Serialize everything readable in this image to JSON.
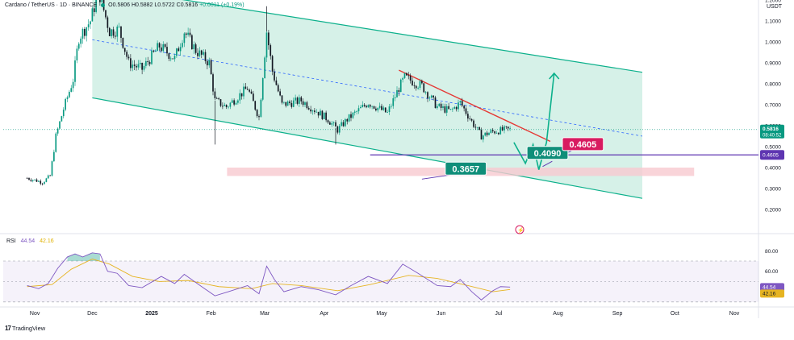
{
  "header": {
    "symbol": "Cardano / TetherUS · 1D · BINANCE",
    "open": "O0.5806",
    "high": "H0.5882",
    "low": "L0.5722",
    "close": "C0.5816",
    "change": "+0.0011 (+0.19%)"
  },
  "currency": "USDT",
  "brand": "TradingView",
  "colors": {
    "up": "#089981",
    "down": "#131722",
    "channel": "#0bb08b",
    "channel_fill": "#cfeee4",
    "resistance": "#e53935",
    "support": "#5e35b1",
    "zone": "#f8c9cf",
    "rsi": "#7e57c2",
    "rsi_ma": "#e6b422",
    "label_green": "#0f8e79",
    "label_pink": "#d81b60"
  },
  "chart_data": [
    {
      "type": "candlestick",
      "title": "",
      "ylim": [
        0.2,
        1.3
      ],
      "y_ticks": [
        "1.2000",
        "1.1000",
        "1.0000",
        "0.9000",
        "0.8000",
        "0.7000",
        "0.6000",
        "0.5000",
        "0.4000",
        "0.3000",
        "0.2000"
      ],
      "x_ticks": [
        "Nov",
        "Dec",
        "2025",
        "Feb",
        "Mar",
        "Apr",
        "May",
        "Jun",
        "Jul",
        "Aug",
        "Sep",
        "Oct",
        "Nov"
      ],
      "price_path": [
        [
          "2024-10-28",
          0.35
        ],
        [
          "2024-11-05",
          0.33
        ],
        [
          "2024-11-09",
          0.36
        ],
        [
          "2024-11-12",
          0.55
        ],
        [
          "2024-11-16",
          0.68
        ],
        [
          "2024-11-21",
          0.82
        ],
        [
          "2024-11-24",
          1.02
        ],
        [
          "2024-11-30",
          1.1
        ],
        [
          "2024-12-03",
          1.2
        ],
        [
          "2024-12-05",
          1.22
        ],
        [
          "2024-12-10",
          1.05
        ],
        [
          "2024-12-15",
          1.06
        ],
        [
          "2024-12-20",
          0.9
        ],
        [
          "2024-12-27",
          0.87
        ],
        [
          "2025-01-05",
          0.98
        ],
        [
          "2025-01-13",
          0.92
        ],
        [
          "2025-01-18",
          1.05
        ],
        [
          "2025-01-24",
          0.96
        ],
        [
          "2025-01-31",
          0.9
        ],
        [
          "2025-02-03",
          0.72
        ],
        [
          "2025-02-09",
          0.69
        ],
        [
          "2025-02-20",
          0.78
        ],
        [
          "2025-02-26",
          0.64
        ],
        [
          "2025-03-02",
          1.05
        ],
        [
          "2025-03-05",
          0.86
        ],
        [
          "2025-03-10",
          0.7
        ],
        [
          "2025-03-20",
          0.72
        ],
        [
          "2025-03-28",
          0.67
        ],
        [
          "2025-04-03",
          0.63
        ],
        [
          "2025-04-08",
          0.58
        ],
        [
          "2025-04-13",
          0.63
        ],
        [
          "2025-04-24",
          0.71
        ],
        [
          "2025-05-04",
          0.66
        ],
        [
          "2025-05-10",
          0.78
        ],
        [
          "2025-05-13",
          0.83
        ],
        [
          "2025-05-22",
          0.79
        ],
        [
          "2025-05-30",
          0.69
        ],
        [
          "2025-06-06",
          0.67
        ],
        [
          "2025-06-11",
          0.71
        ],
        [
          "2025-06-17",
          0.62
        ],
        [
          "2025-06-22",
          0.55
        ],
        [
          "2025-06-27",
          0.57
        ],
        [
          "2025-07-04",
          0.58
        ],
        [
          "2025-07-07",
          0.5816
        ]
      ],
      "wicks": [
        [
          "2025-02-03",
          0.51
        ],
        [
          "2025-03-02",
          1.17
        ],
        [
          "2025-04-07",
          0.51
        ],
        [
          "2024-12-03",
          1.32
        ]
      ],
      "current_price": "0.5816",
      "countdown": "08:40:52",
      "support_price": "0.4605",
      "projection_path": [
        [
          "2025-07-09",
          0.52
        ],
        [
          "2025-07-15",
          0.42
        ],
        [
          "2025-07-19",
          0.51
        ],
        [
          "2025-07-22",
          0.39
        ],
        [
          "2025-07-26",
          0.52
        ],
        [
          "2025-07-30",
          0.85
        ]
      ],
      "annotations": [
        "0.3657",
        "0.4090",
        "0.4605"
      ]
    },
    {
      "type": "line",
      "title": "RSI",
      "legend": [
        "44.54",
        "42.16"
      ],
      "ylim": [
        20,
        80
      ],
      "y_ticks": [
        "80.00",
        "60.00"
      ],
      "band": [
        30,
        70
      ],
      "mid": 50,
      "rsi_value": "44.54",
      "ma_value": "42.16",
      "rsi_path": [
        [
          "2024-10-28",
          46
        ],
        [
          "2024-11-03",
          43
        ],
        [
          "2024-11-08",
          48
        ],
        [
          "2024-11-13",
          63
        ],
        [
          "2024-11-18",
          74
        ],
        [
          "2024-11-22",
          77
        ],
        [
          "2024-11-26",
          74
        ],
        [
          "2024-12-01",
          78
        ],
        [
          "2024-12-05",
          77
        ],
        [
          "2024-12-09",
          60
        ],
        [
          "2024-12-14",
          58
        ],
        [
          "2024-12-20",
          46
        ],
        [
          "2024-12-27",
          44
        ],
        [
          "2025-01-06",
          55
        ],
        [
          "2025-01-13",
          48
        ],
        [
          "2025-01-18",
          57
        ],
        [
          "2025-01-24",
          49
        ],
        [
          "2025-02-03",
          36
        ],
        [
          "2025-02-10",
          40
        ],
        [
          "2025-02-20",
          46
        ],
        [
          "2025-02-26",
          38
        ],
        [
          "2025-03-02",
          65
        ],
        [
          "2025-03-06",
          52
        ],
        [
          "2025-03-11",
          40
        ],
        [
          "2025-03-20",
          45
        ],
        [
          "2025-03-29",
          42
        ],
        [
          "2025-04-07",
          37
        ],
        [
          "2025-04-15",
          46
        ],
        [
          "2025-04-24",
          55
        ],
        [
          "2025-05-04",
          48
        ],
        [
          "2025-05-12",
          67
        ],
        [
          "2025-05-20",
          58
        ],
        [
          "2025-05-30",
          46
        ],
        [
          "2025-06-06",
          45
        ],
        [
          "2025-06-11",
          52
        ],
        [
          "2025-06-17",
          40
        ],
        [
          "2025-06-22",
          32
        ],
        [
          "2025-06-28",
          41
        ],
        [
          "2025-07-02",
          45
        ],
        [
          "2025-07-07",
          44.54
        ]
      ],
      "ma_path": [
        [
          "2024-10-28",
          45
        ],
        [
          "2024-11-10",
          47
        ],
        [
          "2024-11-20",
          62
        ],
        [
          "2024-12-01",
          72
        ],
        [
          "2024-12-10",
          67
        ],
        [
          "2024-12-22",
          55
        ],
        [
          "2025-01-05",
          50
        ],
        [
          "2025-01-20",
          51
        ],
        [
          "2025-02-05",
          45
        ],
        [
          "2025-02-22",
          43
        ],
        [
          "2025-03-05",
          48
        ],
        [
          "2025-03-20",
          46
        ],
        [
          "2025-04-08",
          41
        ],
        [
          "2025-04-25",
          47
        ],
        [
          "2025-05-15",
          56
        ],
        [
          "2025-05-30",
          53
        ],
        [
          "2025-06-15",
          46
        ],
        [
          "2025-06-28",
          40
        ],
        [
          "2025-07-07",
          42.16
        ]
      ]
    }
  ]
}
